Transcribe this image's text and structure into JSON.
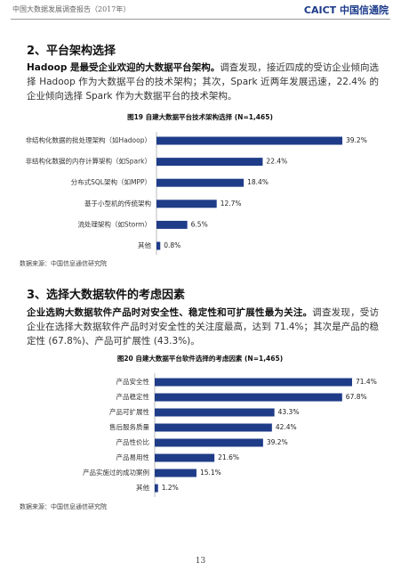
{
  "header": {
    "title": "中国大数据发展调查报告（2017年）",
    "logo": "CAICT 中国信通院"
  },
  "sections": [
    {
      "heading": "2、平台架构选择",
      "bold": "Hadoop 是最受企业欢迎的大数据平台架构。",
      "text": "调查发现，接近四成的受访企业倾向选择 Hadoop 作为大数据平台的技术架构；其次，Spark 近两年发展迅速，22.4% 的企业倾向选择 Spark 作为大数据平台的技术架构。"
    },
    {
      "heading": "3、选择大数据软件的考虑因素",
      "bold": "企业选购大数据软件产品时对安全性、稳定性和可扩展性最为关注。",
      "text": "调查发现，受访企业在选择大数据软件产品时对安全性的关注度最高，达到 71.4%；其次是产品的稳定性 (67.8%)、产品可扩展性 (43.3%)。"
    }
  ],
  "chart_data": [
    {
      "type": "bar",
      "orientation": "horizontal",
      "title": "图19 自建大数据平台技术架构选择 (N=1,465)",
      "color": "#1f3c88",
      "categories": [
        "非结构化数据的批处理架构（如Hadoop）",
        "非结构化数据的内存计算架构（如Spark）",
        "分布式SQL架构（如MPP）",
        "基于小型机的传统架构",
        "流处理架构（如Storm）",
        "其他"
      ],
      "values": [
        39.2,
        22.4,
        18.4,
        12.7,
        6.5,
        0.8
      ],
      "value_labels": [
        "39.2%",
        "22.4%",
        "18.4%",
        "12.7%",
        "6.5%",
        "0.8%"
      ],
      "source": "数据来源：中国信息通信研究院"
    },
    {
      "type": "bar",
      "orientation": "horizontal",
      "title": "图20 自建大数据平台软件选择的考虑因素 (N=1,465)",
      "color": "#1f3c88",
      "categories": [
        "产品安全性",
        "产品稳定性",
        "产品可扩展性",
        "售后服务质量",
        "产品性价比",
        "产品易用性",
        "产品实施过的成功案例",
        "其他"
      ],
      "values": [
        71.4,
        67.8,
        43.3,
        42.4,
        39.2,
        21.6,
        15.1,
        1.2
      ],
      "value_labels": [
        "71.4%",
        "67.8%",
        "43.3%",
        "42.4%",
        "39.2%",
        "21.6%",
        "15.1%",
        "1.2%"
      ],
      "source": "数据来源：中国信息通信研究院"
    }
  ],
  "page_number": "13"
}
